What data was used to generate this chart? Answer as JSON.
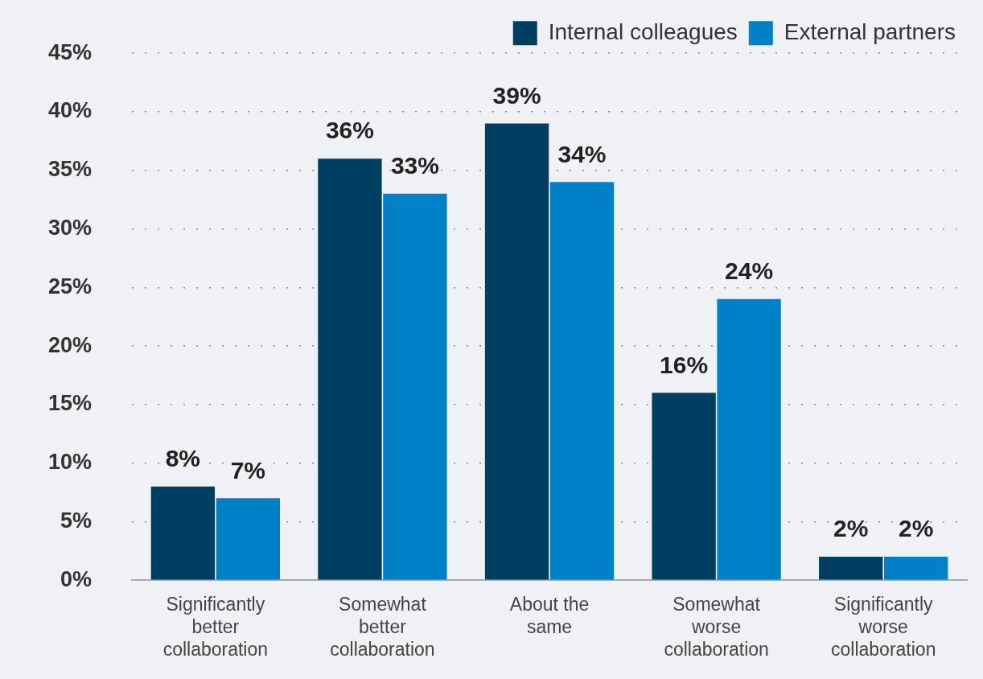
{
  "chart_data": {
    "type": "bar",
    "categories": [
      "Significantly better collaboration",
      "Somewhat better collaboration",
      "About the same",
      "Somewhat worse collaboration",
      "Significantly worse collaboration"
    ],
    "series": [
      {
        "name": "Internal colleagues",
        "color": "#003f62",
        "values": [
          8,
          36,
          39,
          16,
          2
        ],
        "value_labels": [
          "8%",
          "36%",
          "39%",
          "16%",
          "2%"
        ]
      },
      {
        "name": "External partners",
        "color": "#0080c6",
        "values": [
          7,
          33,
          34,
          24,
          2
        ],
        "value_labels": [
          "7%",
          "33%",
          "34%",
          "24%",
          "2%"
        ]
      }
    ],
    "ylim": [
      0,
      45
    ],
    "yticks": [
      {
        "value": 0,
        "label": "0%"
      },
      {
        "value": 5,
        "label": "5%"
      },
      {
        "value": 10,
        "label": "10%"
      },
      {
        "value": 15,
        "label": "15%"
      },
      {
        "value": 20,
        "label": "20%"
      },
      {
        "value": 25,
        "label": "25%"
      },
      {
        "value": 30,
        "label": "30%"
      },
      {
        "value": 35,
        "label": "35%"
      },
      {
        "value": 40,
        "label": "40%"
      },
      {
        "value": 45,
        "label": "45%"
      }
    ],
    "grid": "y",
    "legend": "top right"
  }
}
